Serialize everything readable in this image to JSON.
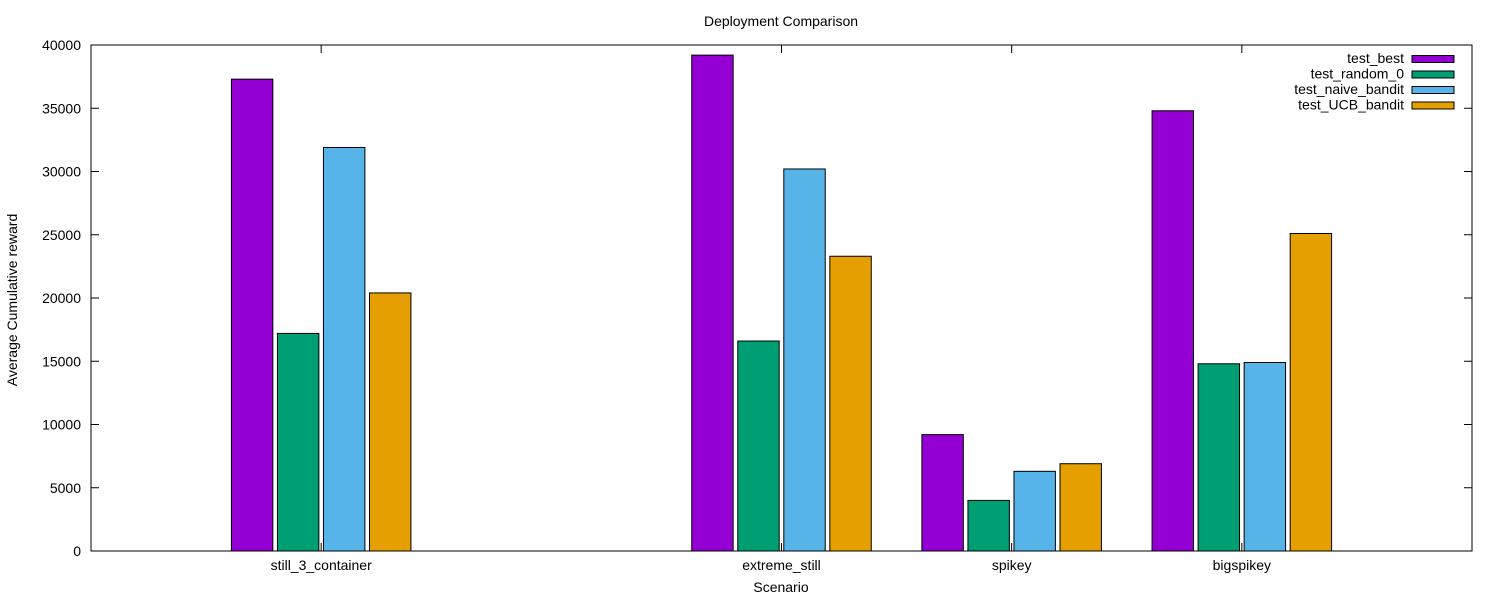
{
  "chart_data": {
    "type": "bar",
    "title": "Deployment Comparison",
    "xlabel": "Scenario",
    "ylabel": "Average Cumulative reward",
    "ylim": [
      0,
      40000
    ],
    "yticks": [
      "0",
      "5000",
      "10000",
      "15000",
      "20000",
      "25000",
      "30000",
      "35000",
      "40000"
    ],
    "categories": [
      "still_3_container",
      "extreme_still",
      "spikey",
      "bigspikey"
    ],
    "category_positions": [
      0,
      3,
      4.5,
      6
    ],
    "xlim": [
      -1.5,
      7.5
    ],
    "grid": false,
    "legend_position": "top-right",
    "series": [
      {
        "name": "test_best",
        "color": "#9400d3",
        "values": [
          37300,
          39200,
          9200,
          34800
        ]
      },
      {
        "name": "test_random_0",
        "color": "#009e73",
        "values": [
          17200,
          16600,
          4000,
          14800
        ]
      },
      {
        "name": "test_naive_bandit",
        "color": "#56b4e9",
        "values": [
          31900,
          30200,
          6300,
          14900
        ]
      },
      {
        "name": "test_UCB_bandit",
        "color": "#e69f00",
        "values": [
          20400,
          23300,
          6900,
          25100
        ]
      }
    ]
  }
}
